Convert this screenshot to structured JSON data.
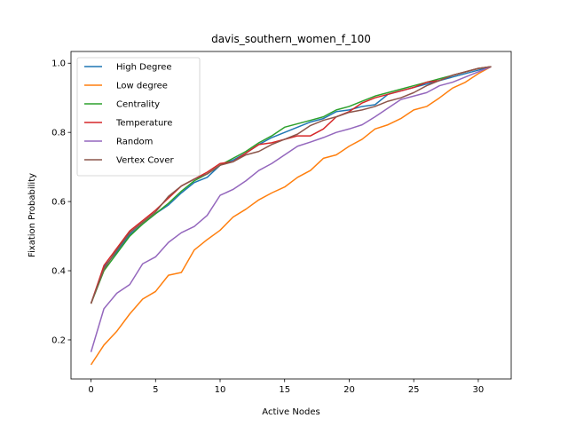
{
  "chart_data": {
    "type": "line",
    "title": "davis_southern_women_f_100",
    "xlabel": "Active Nodes",
    "ylabel": "Fixation Probability",
    "xlim": [
      -1.55,
      32.55
    ],
    "ylim": [
      0.087,
      1.034
    ],
    "xticks": [
      0,
      5,
      10,
      15,
      20,
      25,
      30
    ],
    "yticks": [
      0.2,
      0.4,
      0.6,
      0.8,
      1.0
    ],
    "xtick_labels": [
      "0",
      "5",
      "10",
      "15",
      "20",
      "25",
      "30"
    ],
    "ytick_labels": [
      "0.2",
      "0.4",
      "0.6",
      "0.8",
      "1.0"
    ],
    "grid": false,
    "legend_position": "upper-left",
    "x": [
      0,
      1,
      2,
      3,
      4,
      5,
      6,
      7,
      8,
      9,
      10,
      11,
      12,
      13,
      14,
      15,
      16,
      17,
      18,
      19,
      20,
      21,
      22,
      23,
      24,
      25,
      26,
      27,
      28,
      29,
      30,
      31
    ],
    "series": [
      {
        "name": "High Degree",
        "color": "#1f77b4",
        "values": [
          0.305,
          0.41,
          0.455,
          0.505,
          0.535,
          0.565,
          0.59,
          0.625,
          0.655,
          0.67,
          0.705,
          0.72,
          0.74,
          0.765,
          0.785,
          0.8,
          0.815,
          0.83,
          0.84,
          0.86,
          0.865,
          0.875,
          0.88,
          0.91,
          0.92,
          0.93,
          0.94,
          0.95,
          0.96,
          0.97,
          0.98,
          0.99
        ]
      },
      {
        "name": "Low degree",
        "color": "#ff7f0e",
        "values": [
          0.128,
          0.185,
          0.225,
          0.275,
          0.318,
          0.34,
          0.387,
          0.395,
          0.46,
          0.49,
          0.517,
          0.555,
          0.578,
          0.605,
          0.625,
          0.642,
          0.67,
          0.69,
          0.725,
          0.735,
          0.76,
          0.78,
          0.81,
          0.822,
          0.84,
          0.865,
          0.875,
          0.9,
          0.928,
          0.945,
          0.97,
          0.99
        ]
      },
      {
        "name": "Centrality",
        "color": "#2ca02c",
        "values": [
          0.305,
          0.4,
          0.45,
          0.5,
          0.535,
          0.565,
          0.595,
          0.63,
          0.66,
          0.68,
          0.705,
          0.725,
          0.745,
          0.77,
          0.79,
          0.815,
          0.825,
          0.835,
          0.845,
          0.865,
          0.875,
          0.89,
          0.905,
          0.915,
          0.925,
          0.935,
          0.945,
          0.955,
          0.965,
          0.975,
          0.985,
          0.99
        ]
      },
      {
        "name": "Temperature",
        "color": "#d62728",
        "values": [
          0.305,
          0.415,
          0.465,
          0.515,
          0.545,
          0.575,
          0.61,
          0.645,
          0.665,
          0.685,
          0.71,
          0.715,
          0.74,
          0.765,
          0.77,
          0.78,
          0.79,
          0.79,
          0.81,
          0.845,
          0.86,
          0.885,
          0.9,
          0.91,
          0.92,
          0.93,
          0.945,
          0.95,
          0.965,
          0.975,
          0.985,
          0.99
        ]
      },
      {
        "name": "Random",
        "color": "#9467bd",
        "values": [
          0.165,
          0.29,
          0.335,
          0.36,
          0.42,
          0.44,
          0.482,
          0.51,
          0.528,
          0.56,
          0.618,
          0.635,
          0.66,
          0.69,
          0.71,
          0.735,
          0.76,
          0.772,
          0.785,
          0.8,
          0.81,
          0.822,
          0.845,
          0.87,
          0.895,
          0.905,
          0.915,
          0.935,
          0.945,
          0.96,
          0.975,
          0.99
        ]
      },
      {
        "name": "Vertex Cover",
        "color": "#8c564b",
        "values": [
          0.305,
          0.405,
          0.46,
          0.51,
          0.54,
          0.57,
          0.615,
          0.645,
          0.665,
          0.68,
          0.705,
          0.715,
          0.735,
          0.745,
          0.765,
          0.78,
          0.795,
          0.82,
          0.835,
          0.845,
          0.858,
          0.865,
          0.875,
          0.89,
          0.9,
          0.915,
          0.935,
          0.95,
          0.965,
          0.975,
          0.985,
          0.99
        ]
      }
    ]
  }
}
